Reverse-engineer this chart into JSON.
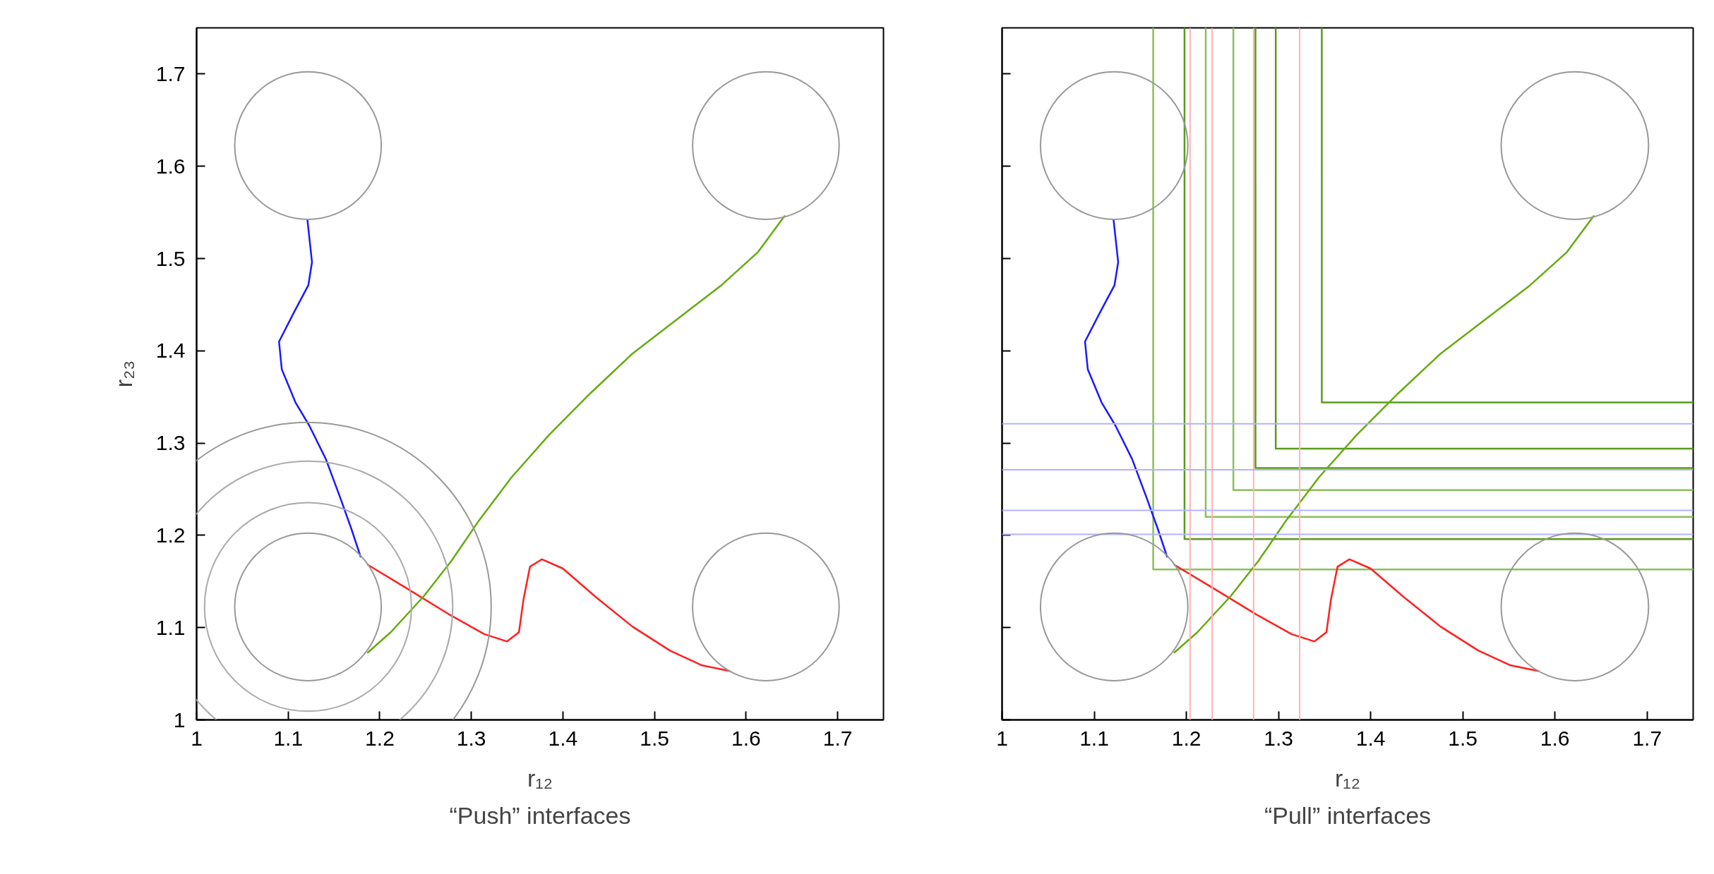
{
  "chart_data": [
    {
      "type": "line",
      "title": "“Push” interfaces",
      "xlabel": "r₁₂",
      "ylabel": "r₂₃",
      "xlim": [
        1,
        1.75
      ],
      "ylim": [
        1,
        1.75
      ],
      "xticks": [
        1,
        1.1,
        1.2,
        1.3,
        1.4,
        1.5,
        1.6,
        1.7
      ],
      "yticks": [
        1,
        1.1,
        1.2,
        1.3,
        1.4,
        1.5,
        1.6,
        1.7
      ],
      "grid": false,
      "series": [
        {
          "color": "#1a1aff",
          "x": [
            1.121,
            1.126,
            1.122,
            1.106,
            1.09,
            1.093,
            1.108,
            1.123,
            1.141,
            1.156,
            1.169,
            1.179
          ],
          "values": [
            1.542,
            1.496,
            1.471,
            1.441,
            1.41,
            1.38,
            1.344,
            1.319,
            1.283,
            1.243,
            1.207,
            1.177
          ]
        },
        {
          "color": "#ff2020",
          "x": [
            1.187,
            1.227,
            1.278,
            1.314,
            1.339,
            1.352,
            1.357,
            1.364,
            1.377,
            1.4,
            1.436,
            1.476,
            1.517,
            1.552,
            1.582
          ],
          "values": [
            1.168,
            1.144,
            1.113,
            1.093,
            1.085,
            1.095,
            1.131,
            1.166,
            1.174,
            1.164,
            1.133,
            1.101,
            1.075,
            1.059,
            1.053
          ]
        },
        {
          "color": "#66aa11",
          "x": [
            1.187,
            1.212,
            1.248,
            1.278,
            1.309,
            1.344,
            1.385,
            1.43,
            1.476,
            1.527,
            1.573,
            1.613,
            1.642
          ],
          "values": [
            1.073,
            1.095,
            1.134,
            1.172,
            1.217,
            1.263,
            1.309,
            1.354,
            1.397,
            1.436,
            1.471,
            1.507,
            1.546
          ]
        }
      ]
    },
    {
      "type": "line",
      "title": "“Pull” interfaces",
      "xlabel": "r₁₂",
      "xlim": [
        1,
        1.75
      ],
      "ylim": [
        1,
        1.75
      ],
      "xticks": [
        1,
        1.1,
        1.2,
        1.3,
        1.4,
        1.5,
        1.6,
        1.7
      ],
      "yticks": [
        1,
        1.1,
        1.2,
        1.3,
        1.4,
        1.5,
        1.6,
        1.7
      ],
      "tick_labels": "x",
      "grid": false,
      "ref_lines": [
        {
          "axis": "x",
          "value": 1.204,
          "color": "#ffb3b3"
        },
        {
          "axis": "x",
          "value": 1.228,
          "color": "#ffb3b3"
        },
        {
          "axis": "x",
          "value": 1.273,
          "color": "#ffb3b3"
        },
        {
          "axis": "x",
          "value": 1.323,
          "color": "#ffb3b3"
        },
        {
          "axis": "y",
          "value": 1.201,
          "color": "#b3b3ff"
        },
        {
          "axis": "y",
          "value": 1.227,
          "color": "#b3b3ff"
        },
        {
          "axis": "y",
          "value": 1.271,
          "color": "#b3b3ff"
        },
        {
          "axis": "y",
          "value": 1.321,
          "color": "#b3b3ff"
        }
      ],
      "series": [
        {
          "color": "#8cbf5a",
          "x": [
            1.164,
            1.164,
            1.75
          ],
          "values": [
            1.75,
            1.163,
            1.163
          ]
        },
        {
          "color": "#5b9a1e",
          "x": [
            1.198,
            1.198,
            1.75
          ],
          "values": [
            1.75,
            1.196,
            1.196
          ]
        },
        {
          "color": "#8cbf5a",
          "x": [
            1.221,
            1.221,
            1.75
          ],
          "values": [
            1.75,
            1.22,
            1.22
          ]
        },
        {
          "color": "#8cbf5a",
          "x": [
            1.251,
            1.251,
            1.75
          ],
          "values": [
            1.75,
            1.249,
            1.249
          ]
        },
        {
          "color": "#5b9a1e",
          "x": [
            1.275,
            1.275,
            1.75
          ],
          "values": [
            1.75,
            1.273,
            1.273
          ]
        },
        {
          "color": "#5b9a1e",
          "x": [
            1.297,
            1.297,
            1.75
          ],
          "values": [
            1.75,
            1.294,
            1.294
          ]
        },
        {
          "color": "#5b9a1e",
          "x": [
            1.347,
            1.347,
            1.75
          ],
          "values": [
            1.75,
            1.344,
            1.344
          ]
        },
        {
          "color": "#1a1aff",
          "x": [
            1.121,
            1.126,
            1.122,
            1.106,
            1.09,
            1.093,
            1.108,
            1.123,
            1.141,
            1.156,
            1.169,
            1.179
          ],
          "values": [
            1.542,
            1.496,
            1.471,
            1.441,
            1.41,
            1.38,
            1.344,
            1.319,
            1.283,
            1.243,
            1.207,
            1.177
          ]
        },
        {
          "color": "#ff2020",
          "x": [
            1.187,
            1.227,
            1.278,
            1.314,
            1.339,
            1.352,
            1.357,
            1.364,
            1.377,
            1.4,
            1.436,
            1.476,
            1.517,
            1.552,
            1.582
          ],
          "values": [
            1.168,
            1.144,
            1.113,
            1.093,
            1.085,
            1.095,
            1.131,
            1.166,
            1.174,
            1.164,
            1.133,
            1.101,
            1.075,
            1.059,
            1.053
          ]
        },
        {
          "color": "#66aa11",
          "x": [
            1.187,
            1.212,
            1.248,
            1.278,
            1.309,
            1.344,
            1.385,
            1.43,
            1.476,
            1.527,
            1.573,
            1.613,
            1.642
          ],
          "values": [
            1.073,
            1.095,
            1.134,
            1.172,
            1.217,
            1.263,
            1.309,
            1.354,
            1.397,
            1.436,
            1.471,
            1.507,
            1.546
          ]
        }
      ]
    }
  ]
}
